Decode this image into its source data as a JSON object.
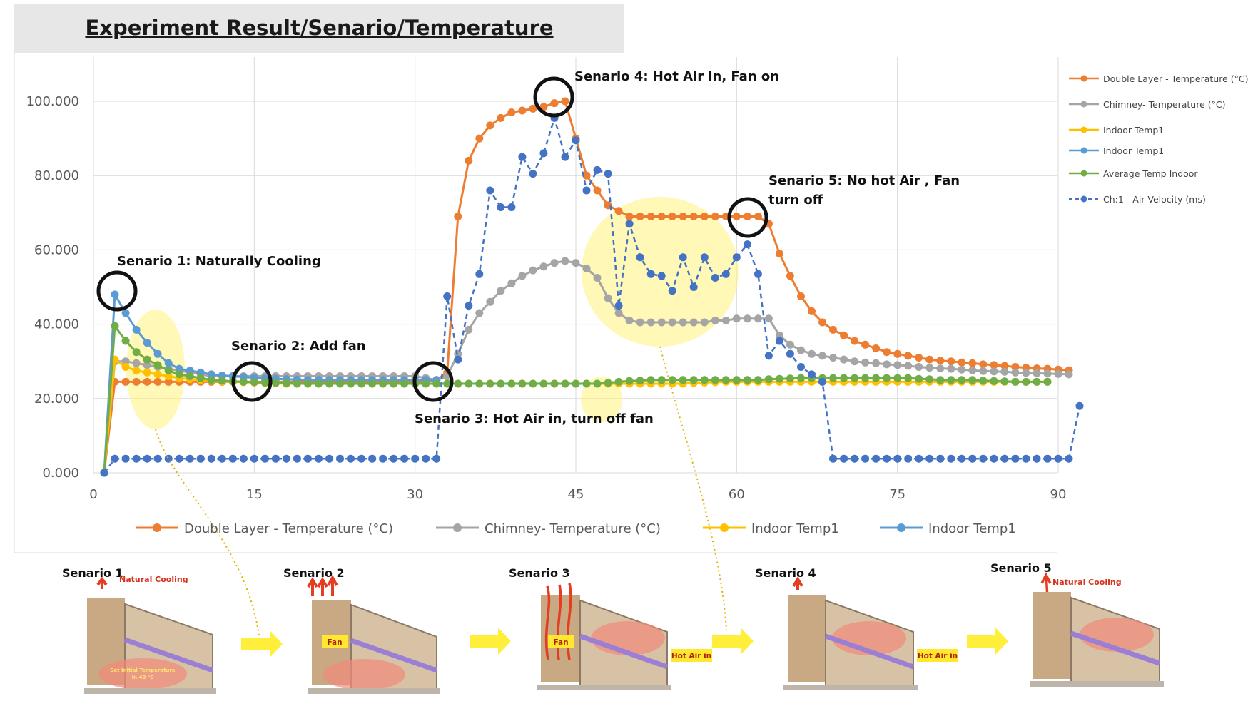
{
  "title": "Experiment Result/Senario/Temperature",
  "chart_data": {
    "type": "line",
    "xlim": [
      0,
      91
    ],
    "ylim": [
      0,
      110
    ],
    "x_ticks": [
      "0",
      "15",
      "30",
      "45",
      "60",
      "75",
      "90"
    ],
    "y_ticks": [
      "0.000",
      "20.000",
      "40.000",
      "60.000",
      "80.000",
      "100.000"
    ],
    "grid": true,
    "legend_bottom": [
      {
        "name": "Double Layer - Temperature   (°C)",
        "color": "#ed7d31"
      },
      {
        "name": "Chimney- Temperature   (°C)",
        "color": "#a5a5a5"
      },
      {
        "name": "Indoor Temp1",
        "color": "#ffc000"
      },
      {
        "name": "Indoor Temp1",
        "color": "#5b9bd5"
      }
    ],
    "legend_right": [
      {
        "name": "Double Layer - Temperature   (°C)",
        "color": "#ed7d31",
        "dashed": false
      },
      {
        "name": "Chimney- Temperature   (°C)",
        "color": "#a5a5a5",
        "dashed": false
      },
      {
        "name": "Indoor Temp1",
        "color": "#ffc000",
        "dashed": false
      },
      {
        "name": "Indoor Temp1",
        "color": "#5b9bd5",
        "dashed": false
      },
      {
        "name": "Average Temp Indoor",
        "color": "#70ad47",
        "dashed": false
      },
      {
        "name": "Ch:1 - Air Velocity   (ms)",
        "color": "#4472c4",
        "dashed": true
      }
    ],
    "series": [
      {
        "name": "Double Layer - Temperature   (°C)",
        "color": "#ed7d31",
        "dashed": false,
        "x": [
          1,
          2,
          3,
          4,
          5,
          6,
          7,
          8,
          9,
          10,
          11,
          12,
          13,
          14,
          15,
          16,
          17,
          18,
          19,
          20,
          21,
          22,
          23,
          24,
          25,
          26,
          27,
          28,
          29,
          30,
          31,
          32,
          33,
          34,
          35,
          36,
          37,
          38,
          39,
          40,
          41,
          42,
          43,
          44,
          45,
          46,
          47,
          48,
          49,
          50,
          51,
          52,
          53,
          54,
          55,
          56,
          57,
          58,
          59,
          60,
          61,
          62,
          63,
          64,
          65,
          66,
          67,
          68,
          69,
          70,
          71,
          72,
          73,
          74,
          75,
          76,
          77,
          78,
          79,
          80,
          81,
          82,
          83,
          84,
          85,
          86,
          87,
          88,
          89,
          90,
          91
        ],
        "y": [
          0,
          24.5,
          24.5,
          24.5,
          24.5,
          24.5,
          24.5,
          24.5,
          24.5,
          24.5,
          24.5,
          24.5,
          24.5,
          24.5,
          24.5,
          24.5,
          24.5,
          24.5,
          24.5,
          24.5,
          24.5,
          24.5,
          24.5,
          24.5,
          24.5,
          24.5,
          24.5,
          24.5,
          24.5,
          24.5,
          24.5,
          25,
          27,
          69,
          84,
          90,
          93.5,
          95.5,
          97,
          97.5,
          98,
          98.5,
          99.5,
          100,
          90,
          80,
          76,
          72,
          70.5,
          69,
          69,
          69,
          69,
          69,
          69,
          69,
          69,
          69,
          69,
          69,
          69,
          69,
          67,
          59,
          53,
          47.5,
          43.5,
          40.5,
          38.5,
          37,
          35.5,
          34.5,
          33.5,
          32.5,
          32,
          31.5,
          31,
          30.5,
          30.2,
          30,
          29.7,
          29.5,
          29.2,
          29,
          28.8,
          28.5,
          28.3,
          28.1,
          28,
          27.8,
          27.6
        ]
      },
      {
        "name": "Chimney- Temperature   (°C)",
        "color": "#a5a5a5",
        "dashed": false,
        "x": [
          1,
          2,
          3,
          4,
          5,
          6,
          7,
          8,
          9,
          10,
          11,
          12,
          13,
          14,
          15,
          16,
          17,
          18,
          19,
          20,
          21,
          22,
          23,
          24,
          25,
          26,
          27,
          28,
          29,
          30,
          31,
          32,
          33,
          34,
          35,
          36,
          37,
          38,
          39,
          40,
          41,
          42,
          43,
          44,
          45,
          46,
          47,
          48,
          49,
          50,
          51,
          52,
          53,
          54,
          55,
          56,
          57,
          58,
          59,
          60,
          61,
          62,
          63,
          64,
          65,
          66,
          67,
          68,
          69,
          70,
          71,
          72,
          73,
          74,
          75,
          76,
          77,
          78,
          79,
          80,
          81,
          82,
          83,
          84,
          85,
          86,
          87,
          88,
          89,
          90,
          91
        ],
        "y": [
          0,
          30,
          30,
          29.5,
          29,
          28.5,
          28,
          27.5,
          27,
          26.5,
          26,
          26,
          26,
          26,
          26,
          26,
          26,
          26,
          26,
          26,
          26,
          26,
          26,
          26,
          26,
          26,
          26,
          26,
          26,
          26,
          25.5,
          25,
          26,
          32,
          38.5,
          43,
          46,
          49,
          51,
          53,
          54.5,
          55.5,
          56.5,
          57,
          56.5,
          55,
          52.5,
          47,
          43,
          41,
          40.5,
          40.5,
          40.5,
          40.5,
          40.5,
          40.5,
          40.5,
          41,
          41,
          41.5,
          41.5,
          41.5,
          41.5,
          37,
          34.5,
          33,
          32,
          31.5,
          31,
          30.5,
          30,
          29.7,
          29.5,
          29.2,
          29,
          28.8,
          28.5,
          28.3,
          28.1,
          28,
          27.8,
          27.6,
          27.4,
          27.3,
          27.2,
          27,
          26.9,
          26.8,
          26.7,
          26.6,
          26.5
        ]
      },
      {
        "name": "Indoor Temp1",
        "color": "#ffc000",
        "dashed": false,
        "x": [
          1,
          2,
          3,
          4,
          5,
          6,
          7,
          8,
          9,
          10,
          11,
          12,
          13,
          14,
          15,
          16,
          17,
          18,
          19,
          20,
          21,
          22,
          23,
          24,
          25,
          26,
          27,
          28,
          29,
          30,
          31,
          32,
          33,
          34,
          35,
          36,
          37,
          38,
          39,
          40,
          41,
          42,
          43,
          44,
          45,
          46,
          47,
          48,
          49,
          50,
          51,
          52,
          53,
          54,
          55,
          56,
          57,
          58,
          59,
          60,
          61,
          62,
          63,
          64,
          65,
          66,
          67,
          68,
          69,
          70,
          71,
          72,
          73,
          74,
          75,
          76,
          77,
          78,
          79,
          80,
          81,
          82,
          83,
          84,
          85,
          86,
          87,
          88,
          89
        ],
        "y": [
          0,
          30.5,
          28.5,
          27.5,
          27,
          26.5,
          26,
          25.5,
          25.2,
          25,
          24.8,
          24.6,
          24.5,
          24.4,
          24.3,
          24.2,
          24.1,
          24,
          24,
          24,
          24,
          24,
          24,
          24,
          24,
          24,
          24,
          24,
          24,
          24,
          24,
          24,
          24,
          24,
          24,
          24,
          24,
          24,
          24,
          24,
          24,
          24,
          24,
          24,
          24,
          24,
          24,
          24,
          24,
          24,
          24,
          24,
          24,
          24,
          24,
          24.2,
          24.3,
          24.4,
          24.5,
          24.5,
          24.5,
          24.5,
          24.5,
          24.5,
          24.5,
          24.5,
          24.5,
          24.5,
          24.5,
          24.5,
          24.5,
          24.5,
          24.5,
          24.5,
          24.5,
          24.5,
          24.5,
          24.5,
          24.5,
          24.5,
          24.5,
          24.5,
          24.5,
          24.5,
          24.5,
          24.5,
          24.5,
          24.5,
          24.5
        ]
      },
      {
        "name": "Indoor Temp1",
        "color": "#5b9bd5",
        "dashed": false,
        "x": [
          1,
          2,
          3,
          4,
          5,
          6,
          7,
          8,
          9,
          10,
          11,
          12,
          13,
          14,
          15,
          16,
          17,
          18,
          19,
          20,
          21,
          22,
          23,
          24,
          25,
          26,
          27,
          28,
          29,
          30,
          31,
          32
        ],
        "y": [
          0,
          48,
          43,
          38.5,
          35,
          32,
          29.5,
          28,
          27.5,
          27,
          26.5,
          26.2,
          26,
          25.8,
          25.6,
          25.4,
          25.3,
          25.2,
          25.1,
          25,
          25,
          25,
          25,
          25,
          25,
          25,
          25,
          25,
          25,
          25,
          25,
          25
        ]
      },
      {
        "name": "Average Temp Indoor",
        "color": "#70ad47",
        "dashed": false,
        "x": [
          1,
          2,
          3,
          4,
          5,
          6,
          7,
          8,
          9,
          10,
          11,
          12,
          13,
          14,
          15,
          16,
          17,
          18,
          19,
          20,
          21,
          22,
          23,
          24,
          25,
          26,
          27,
          28,
          29,
          30,
          31,
          32,
          33,
          34,
          35,
          36,
          37,
          38,
          39,
          40,
          41,
          42,
          43,
          44,
          45,
          46,
          47,
          48,
          49,
          50,
          51,
          52,
          53,
          54,
          55,
          56,
          57,
          58,
          59,
          60,
          61,
          62,
          63,
          64,
          65,
          66,
          67,
          68,
          69,
          70,
          71,
          72,
          73,
          74,
          75,
          76,
          77,
          78,
          79,
          80,
          81,
          82,
          83,
          84,
          85,
          86,
          87,
          88,
          89
        ],
        "y": [
          0,
          39.5,
          35.5,
          32.5,
          30.5,
          29,
          27.5,
          26.5,
          26,
          25.5,
          25,
          24.8,
          24.6,
          24.5,
          24.4,
          24.3,
          24.2,
          24.1,
          24,
          24,
          24,
          24,
          24,
          24,
          24,
          24,
          24,
          24,
          24,
          24,
          24,
          24,
          24,
          24,
          24,
          24,
          24,
          24,
          24,
          24,
          24,
          24,
          24,
          24,
          24,
          24,
          24,
          24.2,
          24.5,
          24.7,
          24.8,
          25,
          25,
          25,
          25,
          25,
          25,
          25,
          25,
          25,
          25,
          25,
          25.2,
          25.3,
          25.4,
          25.5,
          25.5,
          25.5,
          25.5,
          25.5,
          25.5,
          25.5,
          25.5,
          25.5,
          25.5,
          25.5,
          25.3,
          25.2,
          25,
          25,
          25,
          25,
          24.8,
          24.7,
          24.6,
          24.5,
          24.5,
          24.5,
          24.5
        ]
      },
      {
        "name": "Ch:1 - Air Velocity   (ms)",
        "color": "#4472c4",
        "dashed": true,
        "x": [
          1,
          2,
          3,
          4,
          5,
          6,
          7,
          8,
          9,
          10,
          11,
          12,
          13,
          14,
          15,
          16,
          17,
          18,
          19,
          20,
          21,
          22,
          23,
          24,
          25,
          26,
          27,
          28,
          29,
          30,
          31,
          32,
          33,
          34,
          35,
          36,
          37,
          38,
          39,
          40,
          41,
          42,
          43,
          44,
          45,
          46,
          47,
          48,
          49,
          50,
          51,
          52,
          53,
          54,
          55,
          56,
          57,
          58,
          59,
          60,
          61,
          62,
          63,
          64,
          65,
          66,
          67,
          68,
          69,
          70,
          71,
          72,
          73,
          74,
          75,
          76,
          77,
          78,
          79,
          80,
          81,
          82,
          83,
          84,
          85,
          86,
          87,
          88,
          89,
          90,
          91,
          92
        ],
        "y": [
          0,
          3.8,
          3.8,
          3.8,
          3.8,
          3.8,
          3.8,
          3.8,
          3.8,
          3.8,
          3.8,
          3.8,
          3.8,
          3.8,
          3.8,
          3.8,
          3.8,
          3.8,
          3.8,
          3.8,
          3.8,
          3.8,
          3.8,
          3.8,
          3.8,
          3.8,
          3.8,
          3.8,
          3.8,
          3.8,
          3.8,
          3.8,
          47.5,
          30.5,
          45,
          53.5,
          76,
          71.5,
          71.5,
          85,
          80.5,
          86,
          95.5,
          85,
          89.5,
          76,
          81.5,
          80.5,
          45,
          67,
          58,
          53.5,
          53,
          49,
          58,
          50,
          58,
          52.5,
          53.5,
          58,
          61.5,
          53.5,
          31.5,
          35.5,
          32,
          28.5,
          26.5,
          24.5,
          3.8,
          3.8,
          3.8,
          3.8,
          3.8,
          3.8,
          3.8,
          3.8,
          3.8,
          3.8,
          3.8,
          3.8,
          3.8,
          3.8,
          3.8,
          3.8,
          3.8,
          3.8,
          3.8,
          3.8,
          3.8,
          3.8,
          3.8,
          18
        ]
      }
    ],
    "annotations": [
      {
        "text": "Senario 1: Naturally Cooling"
      },
      {
        "text": "Senario 2: Add fan"
      },
      {
        "text": "Senario 3: Hot Air in, turn off fan"
      },
      {
        "text": "Senario 4: Hot Air in, Fan on"
      },
      {
        "text": "Senario 5: No hot Air , Fan"
      },
      {
        "text": "turn off"
      }
    ]
  },
  "scenarios": [
    {
      "title": "Senario 1",
      "note": "Natural Cooling",
      "inner1": "Set Initial Temperature",
      "inner2": "In 40 °C"
    },
    {
      "title": "Senario 2",
      "label": "Fan"
    },
    {
      "title": "Senario 3",
      "label": "Fan",
      "tag": "Hot Air in"
    },
    {
      "title": "Senario 4",
      "tag": "Hot Air in"
    },
    {
      "title": "Senario 5",
      "note": "Natural Cooling"
    }
  ]
}
